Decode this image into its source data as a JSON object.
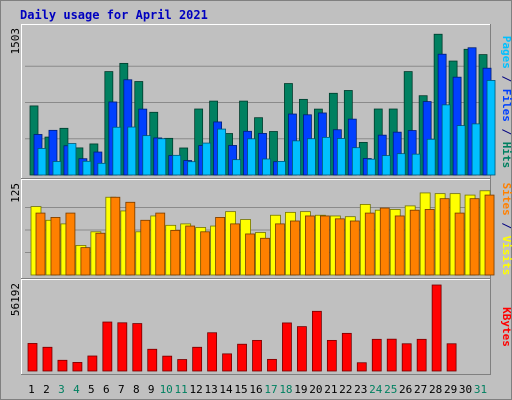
{
  "chart_data": {
    "type": "bar",
    "title": "Daily usage for April 2021",
    "x": [
      "1",
      "2",
      "3",
      "4",
      "5",
      "6",
      "7",
      "8",
      "9",
      "10",
      "11",
      "12",
      "13",
      "14",
      "15",
      "16",
      "17",
      "18",
      "19",
      "20",
      "21",
      "22",
      "23",
      "24",
      "25",
      "26",
      "27",
      "28",
      "29",
      "30",
      "31"
    ],
    "weekend_days": [
      "3",
      "4",
      "10",
      "11",
      "17",
      "18",
      "24",
      "25",
      "31"
    ],
    "panels": [
      {
        "id": "hits-files-pages",
        "ymax": 1503,
        "ymax_label": "1503",
        "grid": true,
        "legend": [
          {
            "text": "Pages",
            "color": "#00c0ff"
          },
          {
            "text": " / ",
            "color": "#000080"
          },
          {
            "text": "Files",
            "color": "#0040ff"
          },
          {
            "text": " / ",
            "color": "#000080"
          },
          {
            "text": "Hits",
            "color": "#008060"
          }
        ],
        "series": [
          {
            "color": "#008060",
            "values": [
              716,
              393,
              484,
              281,
              322,
              1072,
              1157,
              969,
              650,
              380,
              280,
              684,
              766,
              430,
              766,
              594,
              451,
              948,
              784,
              683,
              847,
              876,
              338,
              684,
              684,
              1072,
              822,
              1459,
              1181,
              1303,
              1248
            ]
          },
          {
            "color": "#0040ff",
            "values": [
              420,
              463,
              303,
              169,
              238,
              757,
              987,
              683,
              384,
              201,
              150,
              305,
              550,
              306,
              453,
              431,
              138,
              632,
              624,
              643,
              469,
              579,
              171,
              413,
              444,
              461,
              761,
              1252,
              1014,
              1319,
              1107
            ]
          },
          {
            "color": "#00c0ff",
            "values": [
              275,
              140,
              326,
              142,
              121,
              495,
              497,
              408,
              376,
              204,
              138,
              331,
              476,
              159,
              375,
              166,
              141,
              354,
              376,
              390,
              378,
              283,
              164,
              201,
              221,
              216,
              370,
              727,
              512,
              530,
              980
            ]
          }
        ]
      },
      {
        "id": "visits-sites",
        "ymax": 125,
        "ymax_label": "125",
        "grid": true,
        "legend": [
          {
            "text": "Sites",
            "color": "#ff8000"
          },
          {
            "text": " / ",
            "color": "#000080"
          },
          {
            "text": "Visits",
            "color": "#ffff00"
          }
        ],
        "series": [
          {
            "color": "#ffff00",
            "values": [
              95,
              76,
              71,
              41,
              60,
              108,
              89,
              60,
              82,
              69,
              71,
              66,
              68,
              88,
              77,
              59,
              83,
              87,
              88,
              83,
              82,
              81,
              98,
              90,
              91,
              96,
              114,
              113,
              113,
              111,
              117
            ]
          },
          {
            "color": "#ff8000",
            "values": [
              86,
              80,
              86,
              38,
              58,
              108,
              101,
              76,
              86,
              62,
              68,
              60,
              80,
              71,
              57,
              51,
              71,
              75,
              82,
              82,
              78,
              75,
              86,
              93,
              82,
              90,
              91,
              106,
              86,
              106,
              111
            ]
          }
        ]
      },
      {
        "id": "kbytes",
        "ymax": 56192,
        "ymax_label": "56192",
        "grid": false,
        "legend": [
          {
            "text": "KBytes",
            "color": "#ff0000"
          }
        ],
        "series": [
          {
            "color": "#ff0000",
            "values": [
              18000,
              15500,
              7000,
              5600,
              9800,
              32000,
              31500,
              31000,
              14200,
              9700,
              7500,
              15500,
              25000,
              11200,
              17500,
              20000,
              7600,
              31400,
              29000,
              39000,
              20000,
              24600,
              5400,
              20700,
              20800,
              17800,
              20700,
              56192,
              17800,
              0,
              0
            ]
          }
        ]
      }
    ]
  }
}
